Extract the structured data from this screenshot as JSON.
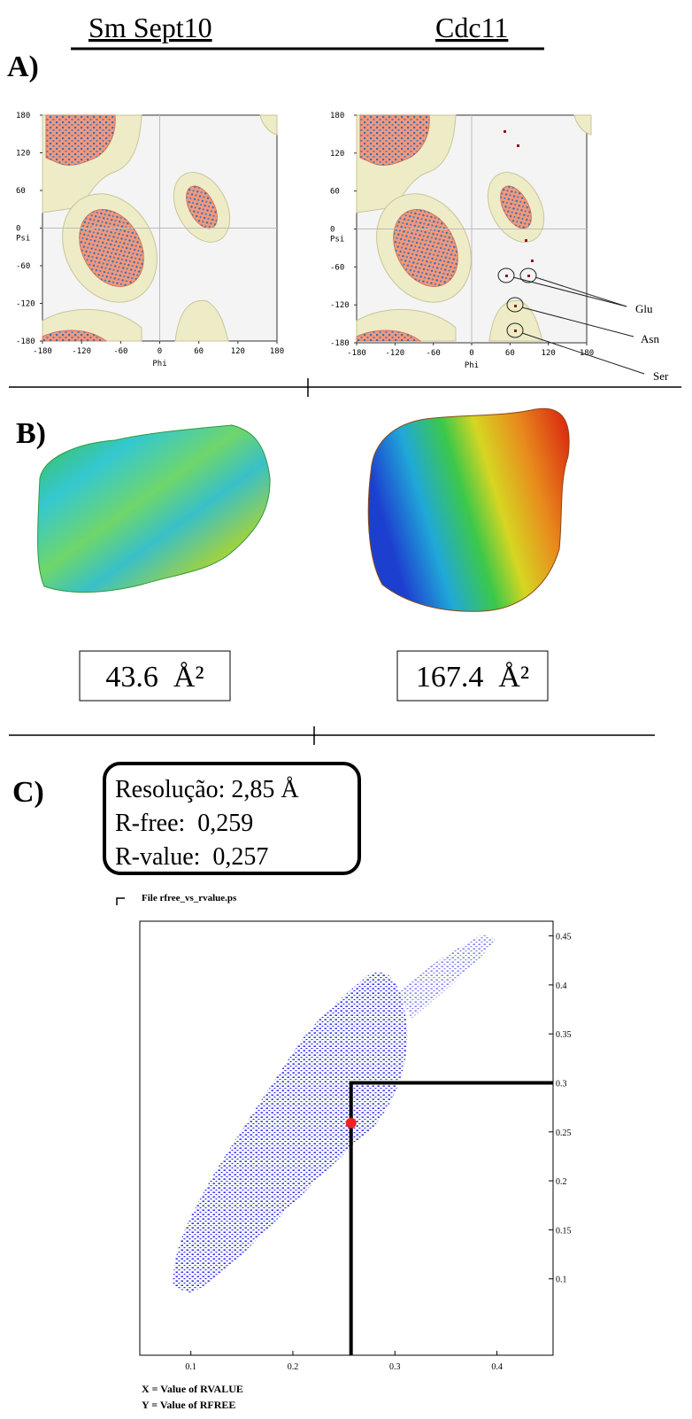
{
  "header": {
    "left_title": "Sm Sept10",
    "right_title": "Cdc11"
  },
  "panel_a": {
    "label": "A)",
    "plots": [
      {
        "xlim": [
          -180,
          180
        ],
        "ylim": [
          -180,
          180
        ],
        "xticks": [
          -180,
          -120,
          -60,
          0,
          60,
          120,
          180
        ],
        "yticks": [
          180,
          120,
          60,
          0,
          -60,
          -120,
          -180
        ],
        "x_label": "Phi",
        "y_label": "Psi"
      },
      {
        "xlim": [
          -180,
          180
        ],
        "ylim": [
          -180,
          180
        ],
        "xticks": [
          -180,
          -120,
          -60,
          0,
          60,
          120,
          180
        ],
        "yticks": [
          180,
          120,
          60,
          0,
          -60,
          -120,
          -180
        ],
        "x_label": "Phi",
        "y_label": "Psi"
      }
    ],
    "annotations": [
      "Glu",
      "Asn",
      "Ser"
    ]
  },
  "panel_b": {
    "label": "B)",
    "values": [
      "43.6  Å²",
      "167.4  Å²"
    ]
  },
  "panel_c": {
    "label": "C)",
    "stats": [
      "Resolução: 2,85 Å",
      "R-free:  0,259",
      "R-value:  0,257"
    ]
  },
  "chart_data": {
    "type": "scatter",
    "title": "File rfree_vs_rvalue.ps",
    "x_label": "X = Value of RVALUE",
    "y_label": "Y = Value of RFREE",
    "xlim": [
      0.05,
      0.455
    ],
    "ylim": [
      0.022,
      0.465
    ],
    "xticks": [
      0.1,
      0.2,
      0.3,
      0.4
    ],
    "yticks": [
      0.1,
      0.15,
      0.2,
      0.25,
      0.3,
      0.35,
      0.4,
      0.45
    ],
    "x": [
      0.257
    ],
    "values": [
      0.259
    ],
    "color": "#ee2222"
  }
}
